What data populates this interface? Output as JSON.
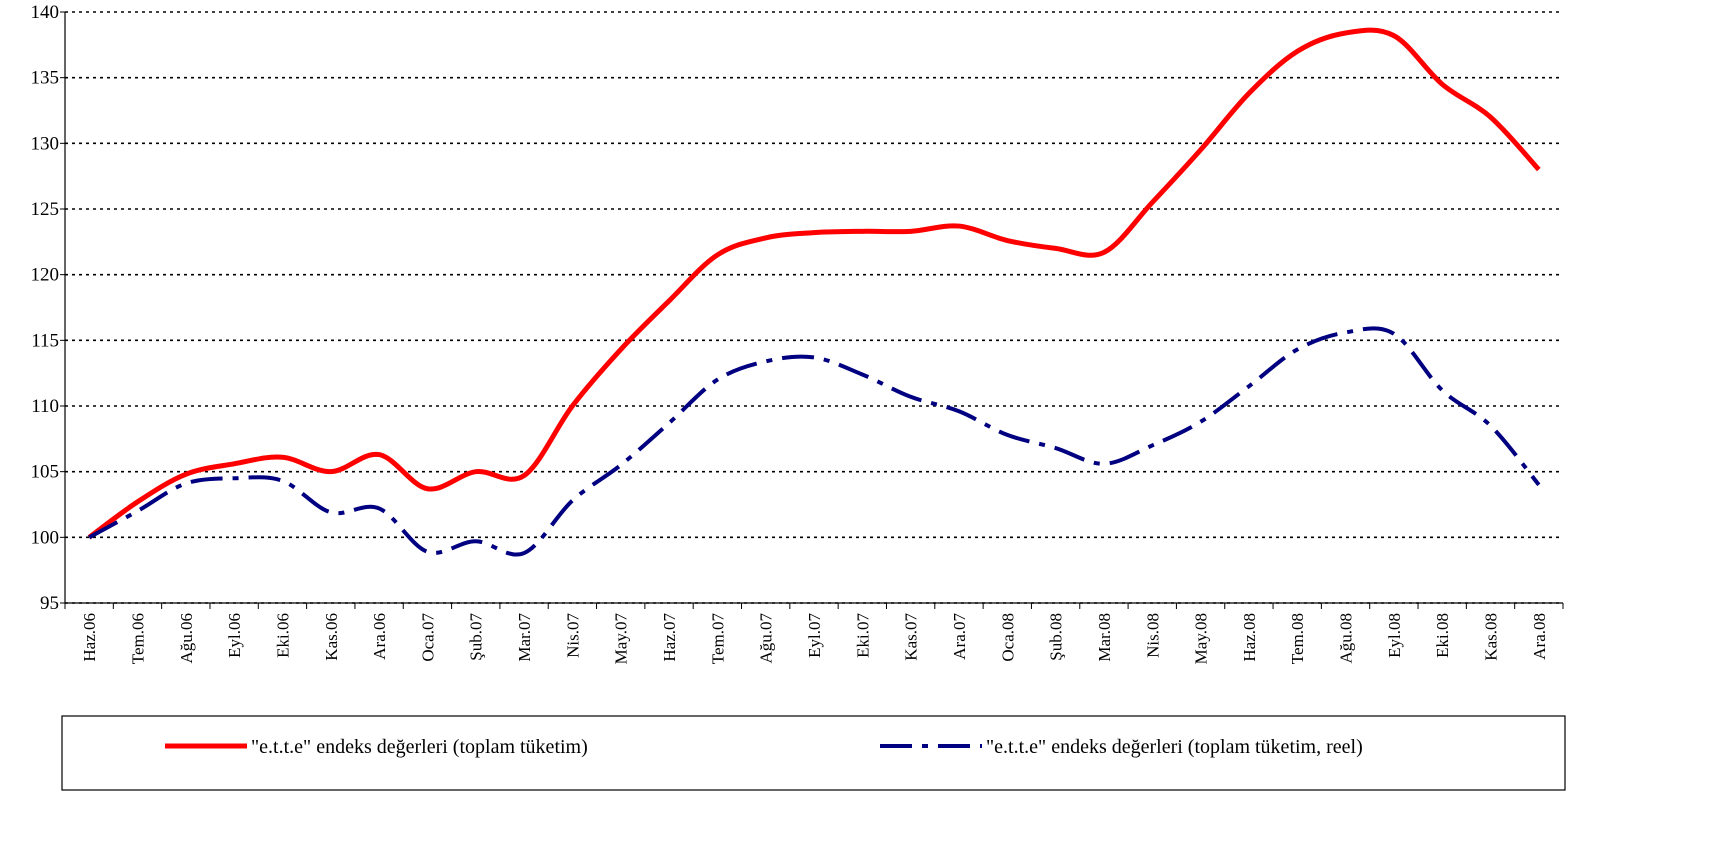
{
  "chart_data": {
    "type": "line",
    "categories": [
      "Haz.06",
      "Tem.06",
      "Ağu.06",
      "Eyl.06",
      "Eki.06",
      "Kas.06",
      "Ara.06",
      "Oca.07",
      "Şub.07",
      "Mar.07",
      "Nis.07",
      "May.07",
      "Haz.07",
      "Tem.07",
      "Ağu.07",
      "Eyl.07",
      "Eki.07",
      "Kas.07",
      "Ara.07",
      "Oca.08",
      "Şub.08",
      "Mar.08",
      "Nis.08",
      "May.08",
      "Haz.08",
      "Tem.08",
      "Ağu.08",
      "Eyl.08",
      "Eki.08",
      "Kas.08",
      "Ara.08"
    ],
    "series": [
      {
        "name": "\"e.t.t.e\" endeks değerleri (toplam tüketim)",
        "color": "#ff0000",
        "values": [
          100,
          102.7,
          104.8,
          105.6,
          106.1,
          105,
          106.3,
          103.7,
          105,
          104.7,
          110,
          114.3,
          118,
          121.5,
          122.8,
          123.2,
          123.3,
          123.3,
          123.7,
          122.6,
          122,
          121.7,
          125.5,
          129.5,
          133.8,
          137,
          138.4,
          138.2,
          134.5,
          132,
          128
        ]
      },
      {
        "name": "\"e.t.t.e\" endeks değerleri (toplam tüketim, reel)",
        "color": "#000080",
        "values": [
          100,
          102,
          104.1,
          104.5,
          104.3,
          101.9,
          102.2,
          98.9,
          99.7,
          98.8,
          102.8,
          105.5,
          108.7,
          112,
          113.4,
          113.7,
          112.4,
          110.7,
          109.6,
          107.8,
          106.8,
          105.6,
          107,
          108.8,
          111.5,
          114.3,
          115.6,
          115.5,
          111.2,
          108.5,
          104
        ]
      }
    ],
    "ylim": [
      95,
      140
    ],
    "yticks": [
      95,
      100,
      105,
      110,
      115,
      120,
      125,
      130,
      135,
      140
    ],
    "grid": true
  }
}
